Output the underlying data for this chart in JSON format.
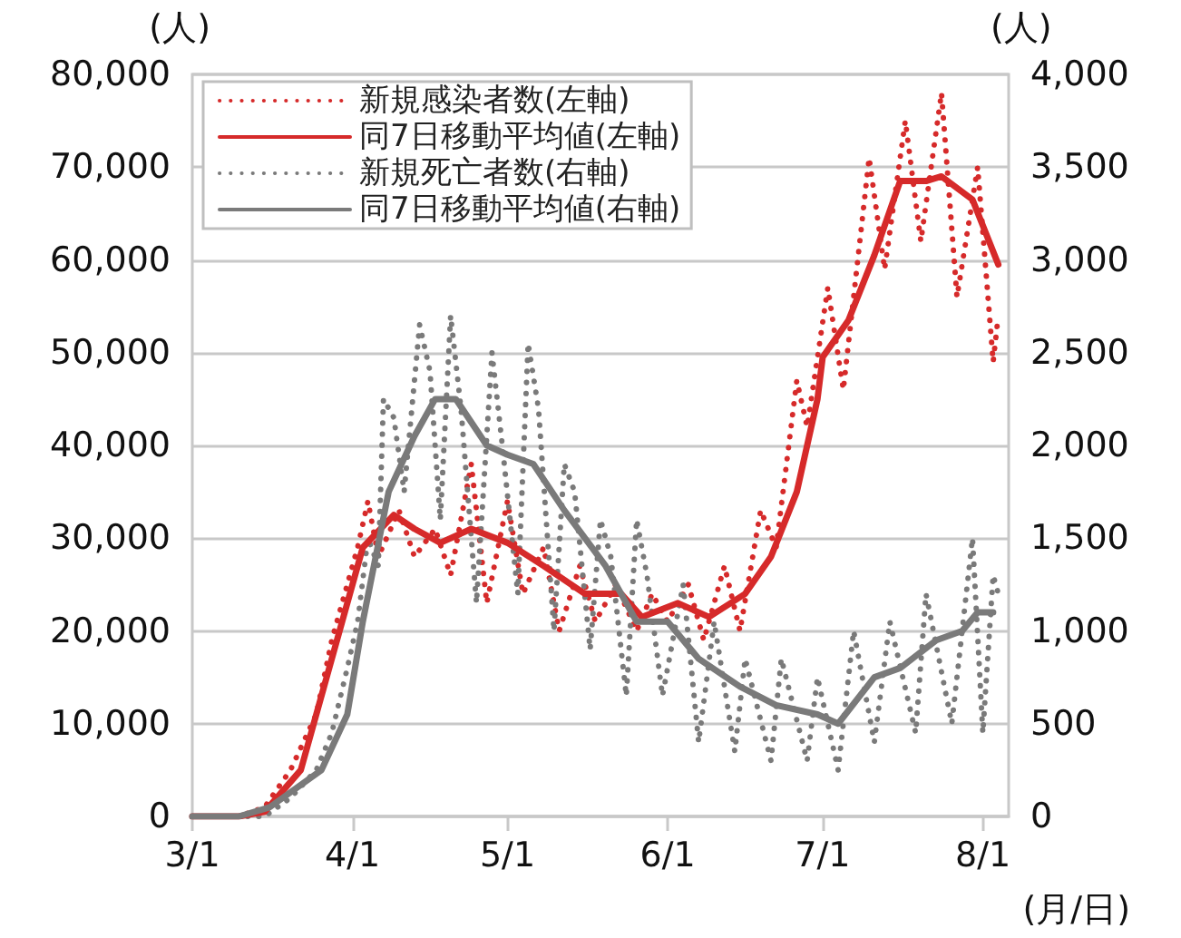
{
  "chart_data": {
    "type": "line",
    "ylabel": "(人)",
    "y2label": "(人)",
    "xlabel": "(月/日)",
    "xlim": [
      "--03-01",
      "--08-06"
    ],
    "xticks": [
      {
        "value": "--03-01",
        "label": "3/1"
      },
      {
        "value": "--04-01",
        "label": "4/1"
      },
      {
        "value": "--05-01",
        "label": "5/1"
      },
      {
        "value": "--06-01",
        "label": "6/1"
      },
      {
        "value": "--07-01",
        "label": "7/1"
      },
      {
        "value": "--08-01",
        "label": "8/1"
      }
    ],
    "ylim": [
      0,
      80000
    ],
    "yticks": [
      {
        "value": 0,
        "label": "0"
      },
      {
        "value": 10000,
        "label": "10,000"
      },
      {
        "value": 20000,
        "label": "20,000"
      },
      {
        "value": 30000,
        "label": "30,000"
      },
      {
        "value": 40000,
        "label": "40,000"
      },
      {
        "value": 50000,
        "label": "50,000"
      },
      {
        "value": 60000,
        "label": "60,000"
      },
      {
        "value": 70000,
        "label": "70,000"
      },
      {
        "value": 80000,
        "label": "80,000"
      }
    ],
    "y2lim": [
      0,
      4000
    ],
    "y2ticks": [
      {
        "value": 0,
        "label": "0"
      },
      {
        "value": 500,
        "label": "500"
      },
      {
        "value": 1000,
        "label": "1,000"
      },
      {
        "value": 1500,
        "label": "1,500"
      },
      {
        "value": 2000,
        "label": "2,000"
      },
      {
        "value": 2500,
        "label": "2,500"
      },
      {
        "value": 3000,
        "label": "3,000"
      },
      {
        "value": 3500,
        "label": "3,500"
      },
      {
        "value": 4000,
        "label": "4,000"
      }
    ],
    "grid": "y",
    "legend": "top left",
    "marker": "none",
    "series": [
      {
        "name": "新規感染者数(左軸)",
        "color": "#d62a2a",
        "line_style": "dotted",
        "x": [
          "--03-01",
          "--03-10",
          "--03-15",
          "--03-20",
          "--03-25",
          "--03-28",
          "--03-31",
          "--04-02",
          "--04-04",
          "--04-06",
          "--04-10",
          "--04-13",
          "--04-17",
          "--04-20",
          "--04-24",
          "--04-27",
          "--05-01",
          "--05-04",
          "--05-08",
          "--05-11",
          "--05-15",
          "--05-18",
          "--05-22",
          "--05-26",
          "--05-29",
          "--06-01",
          "--06-05",
          "--06-08",
          "--06-12",
          "--06-15",
          "--06-19",
          "--06-22",
          "--06-26",
          "--06-28",
          "--07-02",
          "--07-05",
          "--07-10",
          "--07-13",
          "--07-17",
          "--07-20",
          "--07-24",
          "--07-27",
          "--07-31",
          "--08-03",
          "--08-04"
        ],
        "values": [
          0,
          0,
          1000,
          5000,
          11000,
          19000,
          25000,
          29000,
          34000,
          28000,
          33000,
          28000,
          31000,
          26000,
          38000,
          23000,
          34000,
          24000,
          29000,
          20000,
          27000,
          21000,
          25000,
          20000,
          24000,
          21000,
          25000,
          19000,
          27000,
          20000,
          33000,
          29000,
          47000,
          42000,
          57000,
          46000,
          71000,
          59000,
          75000,
          62000,
          78000,
          56000,
          70000,
          49000,
          54000
        ]
      },
      {
        "name": "同7日移動平均値(左軸)",
        "color": "#d62a2a",
        "line_style": "solid",
        "x": [
          "--03-01",
          "--03-10",
          "--03-15",
          "--03-22",
          "--03-27",
          "--04-03",
          "--04-09",
          "--04-13",
          "--04-18",
          "--04-24",
          "--05-01",
          "--05-08",
          "--05-16",
          "--05-23",
          "--05-27",
          "--06-03",
          "--06-09",
          "--06-16",
          "--06-21",
          "--06-26",
          "--06-30",
          "--07-01",
          "--07-06",
          "--07-11",
          "--07-16",
          "--07-21",
          "--07-24",
          "--07-30",
          "--08-04"
        ],
        "values": [
          0,
          0,
          500,
          5000,
          15000,
          29000,
          32500,
          31000,
          29500,
          31000,
          29500,
          27000,
          24000,
          24000,
          21500,
          23000,
          21500,
          24000,
          28000,
          35000,
          45000,
          49500,
          53500,
          60500,
          68500,
          68500,
          69000,
          66500,
          59500
        ]
      },
      {
        "name": "新規死亡者数(右軸)",
        "color": "#7a7a7a",
        "line_style": "dotted",
        "axis": "y2",
        "x": [
          "--03-01",
          "--03-15",
          "--03-20",
          "--03-25",
          "--03-28",
          "--03-31",
          "--04-02",
          "--04-04",
          "--04-06",
          "--04-07",
          "--04-09",
          "--04-11",
          "--04-14",
          "--04-16",
          "--04-18",
          "--04-20",
          "--04-22",
          "--04-25",
          "--04-28",
          "--04-30",
          "--05-03",
          "--05-05",
          "--05-07",
          "--05-10",
          "--05-12",
          "--05-14",
          "--05-17",
          "--05-19",
          "--05-21",
          "--05-24",
          "--05-26",
          "--05-28",
          "--05-31",
          "--06-04",
          "--06-07",
          "--06-10",
          "--06-14",
          "--06-16",
          "--06-21",
          "--06-23",
          "--06-28",
          "--06-30",
          "--07-04",
          "--07-07",
          "--07-11",
          "--07-14",
          "--07-19",
          "--07-21",
          "--07-26",
          "--07-30",
          "--08-01",
          "--08-03",
          "--08-04"
        ],
        "values": [
          0,
          0,
          100,
          250,
          450,
          800,
          1050,
          1500,
          1350,
          2250,
          2150,
          1750,
          2650,
          2400,
          1600,
          2700,
          2200,
          1150,
          2500,
          2000,
          1200,
          2550,
          2200,
          1000,
          1900,
          1750,
          900,
          1600,
          1400,
          650,
          1600,
          1300,
          650,
          1250,
          400,
          1050,
          350,
          850,
          300,
          850,
          300,
          750,
          250,
          1000,
          400,
          1050,
          450,
          1200,
          500,
          1500,
          450,
          1300,
          1200
        ]
      },
      {
        "name": "同7日移動平均値(右軸)",
        "color": "#7a7a7a",
        "line_style": "solid",
        "axis": "y2",
        "x": [
          "--03-01",
          "--03-10",
          "--03-16",
          "--03-26",
          "--03-31",
          "--04-03",
          "--04-08",
          "--04-13",
          "--04-17",
          "--04-21",
          "--04-27",
          "--05-01",
          "--05-06",
          "--05-12",
          "--05-20",
          "--05-26",
          "--06-01",
          "--06-07",
          "--06-15",
          "--06-22",
          "--06-30",
          "--07-04",
          "--07-11",
          "--07-16",
          "--07-23",
          "--07-28",
          "--07-31",
          "--08-03"
        ],
        "values": [
          0,
          0,
          50,
          250,
          550,
          1050,
          1750,
          2050,
          2250,
          2250,
          2000,
          1950,
          1900,
          1650,
          1350,
          1050,
          1050,
          850,
          700,
          600,
          550,
          500,
          750,
          800,
          950,
          1000,
          1100,
          1100
        ]
      }
    ]
  }
}
